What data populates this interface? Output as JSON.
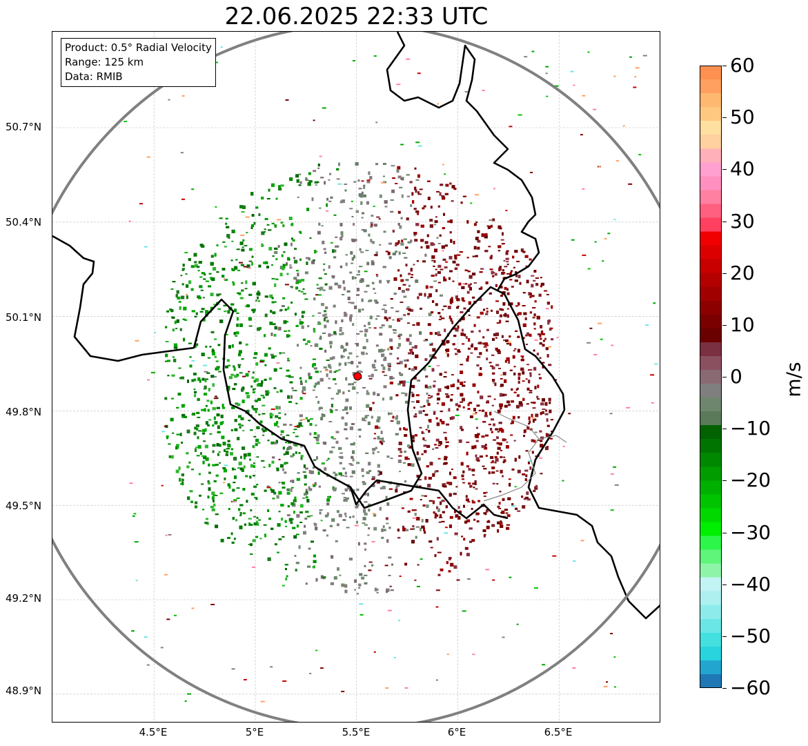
{
  "title": "22.06.2025 22:33 UTC",
  "info": {
    "product": "Product: 0.5° Radial Velocity",
    "range": "Range: 125 km",
    "source": "Data: RMIB"
  },
  "axes": {
    "lat_ticks": [
      "50.7°N",
      "50.4°N",
      "50.1°N",
      "49.8°N",
      "49.5°N",
      "49.2°N",
      "48.9°N"
    ],
    "lon_ticks": [
      "4.5°E",
      "5°E",
      "5.5°E",
      "6°E",
      "6.5°E"
    ]
  },
  "radar": {
    "lat": 49.91,
    "lon": 5.505,
    "range_km": 125
  },
  "colorbar": {
    "unit": "m/s",
    "ticks": [
      "60",
      "50",
      "40",
      "30",
      "20",
      "10",
      "0",
      "−10",
      "−20",
      "−30",
      "−40",
      "−50",
      "−60"
    ],
    "min": -60,
    "max": 60,
    "colors": [
      "#1f77b4",
      "#22a6cf",
      "#2ad4de",
      "#44e0e0",
      "#6ae6e6",
      "#8eebeb",
      "#aef0f0",
      "#c2f4f4",
      "#8ef5a8",
      "#5ef57a",
      "#2ef54a",
      "#00ee00",
      "#00d800",
      "#00c400",
      "#00b000",
      "#009c00",
      "#008800",
      "#007400",
      "#006200",
      "#5a7a5a",
      "#6e866e",
      "#7f7f7f",
      "#8a6a72",
      "#8a5060",
      "#7a3040",
      "#6a0000",
      "#7a0000",
      "#8c0000",
      "#a00000",
      "#b40000",
      "#c80000",
      "#dd0000",
      "#f00000",
      "#ff4060",
      "#ff6080",
      "#ff80a0",
      "#ff90c0",
      "#ffa0d0",
      "#ffb0b8",
      "#ffd0a0",
      "#ffe0a0",
      "#ffc880",
      "#ffb870",
      "#ffa060",
      "#ff9050"
    ]
  },
  "map_colors": {
    "approach": "#2e8b2e",
    "recede": "#7a0000",
    "near_zero": "#6e8a6e",
    "range_ring": "#808080",
    "border": "#000000",
    "site_marker": "#ff0000"
  }
}
